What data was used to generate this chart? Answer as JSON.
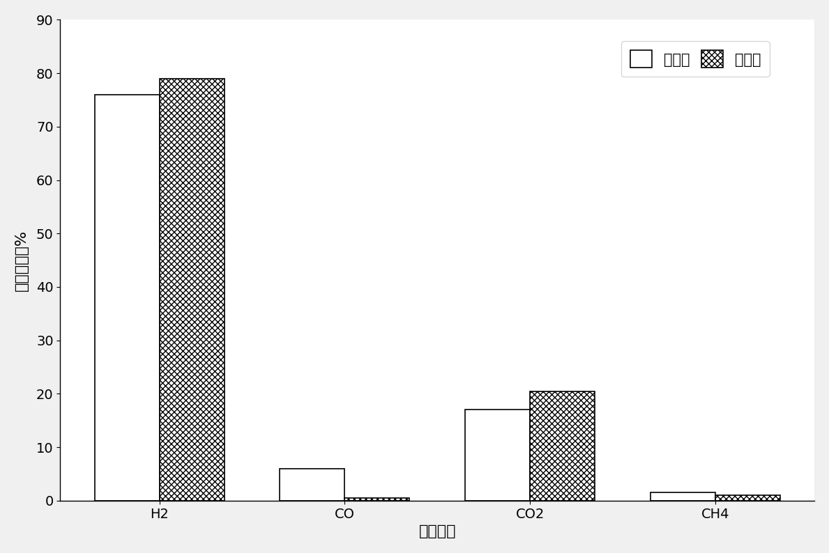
{
  "categories": [
    "H2",
    "CO",
    "CO2",
    "CH4"
  ],
  "before": [
    76.0,
    6.0,
    17.0,
    1.5
  ],
  "after": [
    79.0,
    0.5,
    20.5,
    1.0
  ],
  "ylabel": "百分含量，%",
  "xlabel": "气体组分",
  "ylim": [
    0,
    90
  ],
  "yticks": [
    0,
    10,
    20,
    30,
    40,
    50,
    60,
    70,
    80,
    90
  ],
  "legend_before": "反应前",
  "legend_after": "反应后",
  "bar_width": 0.35,
  "background_color": "#f0f0f0",
  "face_color": "#ffffff",
  "hatch_pattern": "xxxx",
  "fontsize_labels": 16,
  "fontsize_ticks": 14,
  "fontsize_legend": 15
}
